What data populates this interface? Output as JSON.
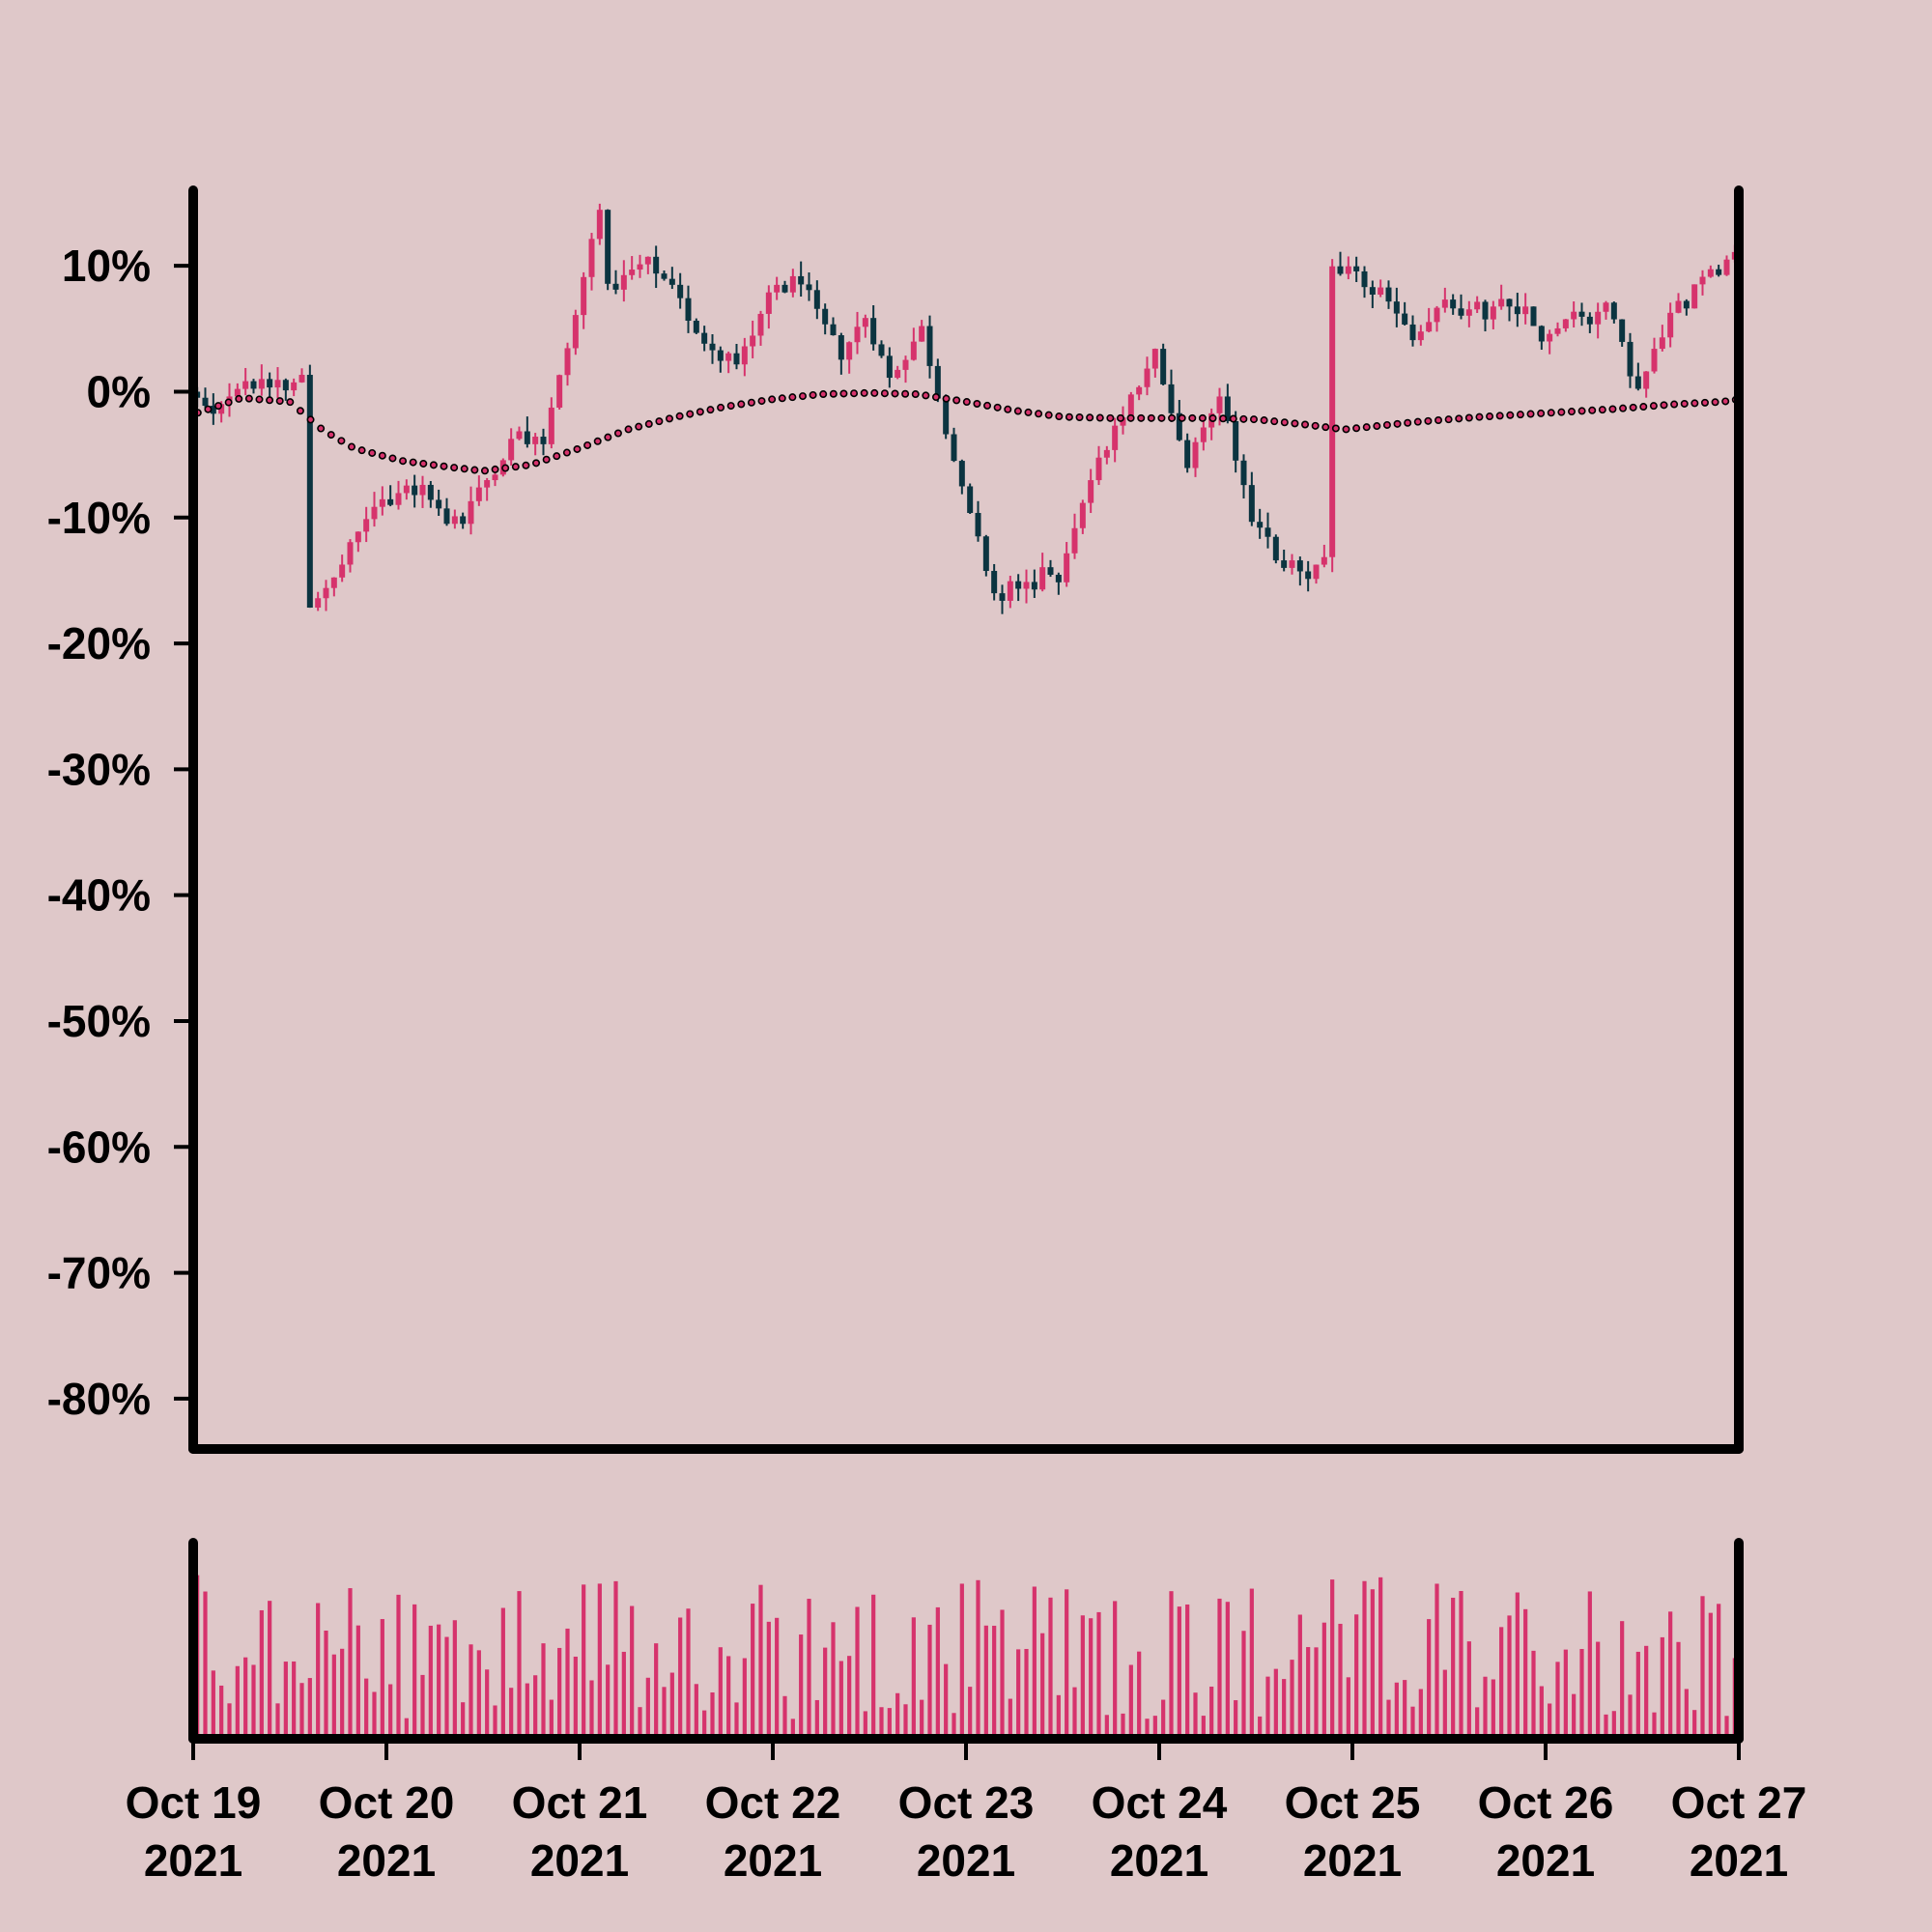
{
  "chart_data": {
    "type": "candlestick",
    "colors": {
      "background": "#dfc8c9",
      "up": "#d6336c",
      "down": "#0b3440",
      "moving_average": "#d6336c",
      "volume": "#d6336c",
      "axis": "#000000"
    },
    "price_axis": {
      "ylim": [
        -0.84,
        0.16
      ],
      "ticks": [
        0.1,
        0.0,
        -0.1,
        -0.2,
        -0.3,
        -0.4,
        -0.5,
        -0.6,
        -0.7,
        -0.8
      ],
      "tick_labels": [
        "10%",
        "0%",
        "-10%",
        "-20%",
        "-30%",
        "-40%",
        "-50%",
        "-60%",
        "-70%",
        "-80%"
      ]
    },
    "time_axis": {
      "start": "2021-10-19T00:00",
      "end": "2021-10-27T00:00",
      "ticks": [
        {
          "date": "2021-10-19",
          "line1": "Oct 19",
          "line2": "2021"
        },
        {
          "date": "2021-10-20",
          "line1": "Oct 20",
          "line2": "2021"
        },
        {
          "date": "2021-10-21",
          "line1": "Oct 21",
          "line2": "2021"
        },
        {
          "date": "2021-10-22",
          "line1": "Oct 22",
          "line2": "2021"
        },
        {
          "date": "2021-10-23",
          "line1": "Oct 23",
          "line2": "2021"
        },
        {
          "date": "2021-10-24",
          "line1": "Oct 24",
          "line2": "2021"
        },
        {
          "date": "2021-10-25",
          "line1": "Oct 25",
          "line2": "2021"
        },
        {
          "date": "2021-10-26",
          "line1": "Oct 26",
          "line2": "2021"
        },
        {
          "date": "2021-10-27",
          "line1": "Oct 27",
          "line2": "2021"
        }
      ]
    },
    "close_path": [
      [
        "2021-10-19T00:00",
        0.0
      ],
      [
        "2021-10-19T03:00",
        -0.02
      ],
      [
        "2021-10-19T06:00",
        0.0
      ],
      [
        "2021-10-19T09:00",
        0.01
      ],
      [
        "2021-10-19T12:00",
        0.0
      ],
      [
        "2021-10-19T14:00",
        0.01
      ],
      [
        "2021-10-19T14:30",
        -0.17
      ],
      [
        "2021-10-19T18:00",
        -0.15
      ],
      [
        "2021-10-19T22:00",
        -0.1
      ],
      [
        "2021-10-20T02:00",
        -0.08
      ],
      [
        "2021-10-20T06:00",
        -0.08
      ],
      [
        "2021-10-20T08:00",
        -0.11
      ],
      [
        "2021-10-20T12:00",
        -0.08
      ],
      [
        "2021-10-20T16:00",
        -0.04
      ],
      [
        "2021-10-20T20:00",
        -0.04
      ],
      [
        "2021-10-21T00:00",
        0.06
      ],
      [
        "2021-10-21T03:00",
        0.15
      ],
      [
        "2021-10-21T04:00",
        0.08
      ],
      [
        "2021-10-21T08:00",
        0.1
      ],
      [
        "2021-10-21T12:00",
        0.08
      ],
      [
        "2021-10-21T16:00",
        0.04
      ],
      [
        "2021-10-21T20:00",
        0.02
      ],
      [
        "2021-10-22T00:00",
        0.08
      ],
      [
        "2021-10-22T04:00",
        0.09
      ],
      [
        "2021-10-22T06:00",
        0.06
      ],
      [
        "2021-10-22T09:00",
        0.03
      ],
      [
        "2021-10-22T12:00",
        0.06
      ],
      [
        "2021-10-22T15:00",
        0.01
      ],
      [
        "2021-10-22T19:00",
        0.05
      ],
      [
        "2021-10-23T00:00",
        -0.08
      ],
      [
        "2021-10-23T04:00",
        -0.16
      ],
      [
        "2021-10-23T08:00",
        -0.15
      ],
      [
        "2021-10-23T12:00",
        -0.14
      ],
      [
        "2021-10-23T16:00",
        -0.07
      ],
      [
        "2021-10-23T20:00",
        -0.02
      ],
      [
        "2021-10-24T00:00",
        0.03
      ],
      [
        "2021-10-24T04:00",
        -0.06
      ],
      [
        "2021-10-24T08:00",
        0.0
      ],
      [
        "2021-10-24T12:00",
        -0.1
      ],
      [
        "2021-10-24T16:00",
        -0.14
      ],
      [
        "2021-10-24T21:30",
        -0.14
      ],
      [
        "2021-10-24T22:00",
        0.1
      ],
      [
        "2021-10-25T04:00",
        0.08
      ],
      [
        "2021-10-25T08:00",
        0.04
      ],
      [
        "2021-10-25T12:00",
        0.07
      ],
      [
        "2021-10-25T16:00",
        0.06
      ],
      [
        "2021-10-25T20:00",
        0.07
      ],
      [
        "2021-10-26T00:00",
        0.04
      ],
      [
        "2021-10-26T04:00",
        0.06
      ],
      [
        "2021-10-26T08:00",
        0.07
      ],
      [
        "2021-10-26T12:00",
        0.0
      ],
      [
        "2021-10-26T16:00",
        0.06
      ],
      [
        "2021-10-26T20:00",
        0.09
      ],
      [
        "2021-10-26T23:00",
        0.1
      ],
      [
        "2021-10-27T00:00",
        0.11
      ]
    ],
    "moving_average": [
      [
        "2021-10-19T00:00",
        -0.018
      ],
      [
        "2021-10-19T06:00",
        -0.005
      ],
      [
        "2021-10-19T12:00",
        -0.008
      ],
      [
        "2021-10-19T16:00",
        -0.03
      ],
      [
        "2021-10-19T20:00",
        -0.045
      ],
      [
        "2021-10-20T02:00",
        -0.055
      ],
      [
        "2021-10-20T08:00",
        -0.06
      ],
      [
        "2021-10-20T12:00",
        -0.063
      ],
      [
        "2021-10-20T18:00",
        -0.058
      ],
      [
        "2021-10-21T00:00",
        -0.045
      ],
      [
        "2021-10-21T06:00",
        -0.03
      ],
      [
        "2021-10-21T12:00",
        -0.02
      ],
      [
        "2021-10-21T18:00",
        -0.012
      ],
      [
        "2021-10-22T00:00",
        -0.006
      ],
      [
        "2021-10-22T06:00",
        -0.002
      ],
      [
        "2021-10-22T12:00",
        -0.001
      ],
      [
        "2021-10-22T18:00",
        -0.002
      ],
      [
        "2021-10-23T00:00",
        -0.008
      ],
      [
        "2021-10-23T06:00",
        -0.015
      ],
      [
        "2021-10-23T12:00",
        -0.02
      ],
      [
        "2021-10-23T18:00",
        -0.021
      ],
      [
        "2021-10-24T00:00",
        -0.021
      ],
      [
        "2021-10-24T06:00",
        -0.021
      ],
      [
        "2021-10-24T12:00",
        -0.022
      ],
      [
        "2021-10-24T18:00",
        -0.026
      ],
      [
        "2021-10-24T23:00",
        -0.03
      ],
      [
        "2021-10-25T02:00",
        -0.028
      ],
      [
        "2021-10-25T08:00",
        -0.024
      ],
      [
        "2021-10-25T16:00",
        -0.02
      ],
      [
        "2021-10-26T00:00",
        -0.017
      ],
      [
        "2021-10-26T08:00",
        -0.014
      ],
      [
        "2021-10-26T16:00",
        -0.01
      ],
      [
        "2021-10-26T22:00",
        -0.008
      ],
      [
        "2021-10-27T00:00",
        -0.006
      ]
    ]
  }
}
